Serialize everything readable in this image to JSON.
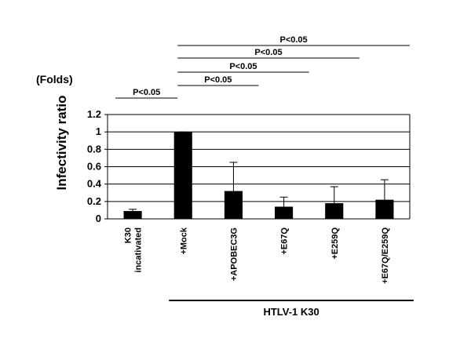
{
  "chart_data": {
    "type": "bar",
    "y_label": "Infectivity ratio",
    "unit_note": "(Folds)",
    "categories": [
      "K30\nincativated",
      "+Mock",
      "+APOBEC3G",
      "+E67Q",
      "+E259Q",
      "+E67Q/E259Q"
    ],
    "values": [
      0.09,
      1.0,
      0.32,
      0.14,
      0.18,
      0.22
    ],
    "errors": [
      0.02,
      0,
      0.33,
      0.11,
      0.19,
      0.23
    ],
    "color": "#000000",
    "ylim": [
      0,
      1.2
    ],
    "yticks": [
      0,
      0.2,
      0.4,
      0.6,
      0.8,
      1,
      1.2
    ],
    "grid": true,
    "significance": [
      {
        "label": "P<0.05",
        "between": [
          "K30\nincativated",
          "+Mock"
        ]
      },
      {
        "label": "P<0.05",
        "between": [
          "+Mock",
          "+APOBEC3G"
        ]
      },
      {
        "label": "P<0.05",
        "between": [
          "+Mock",
          "+E67Q"
        ]
      },
      {
        "label": "P<0.05",
        "between": [
          "+Mock",
          "+E259Q"
        ]
      },
      {
        "label": "P<0.05",
        "between": [
          "+Mock",
          "+E67Q/E259Q"
        ]
      }
    ],
    "group": {
      "label": "HTLV-1 K30",
      "from": "+Mock",
      "to": "+E67Q/E259Q"
    }
  }
}
